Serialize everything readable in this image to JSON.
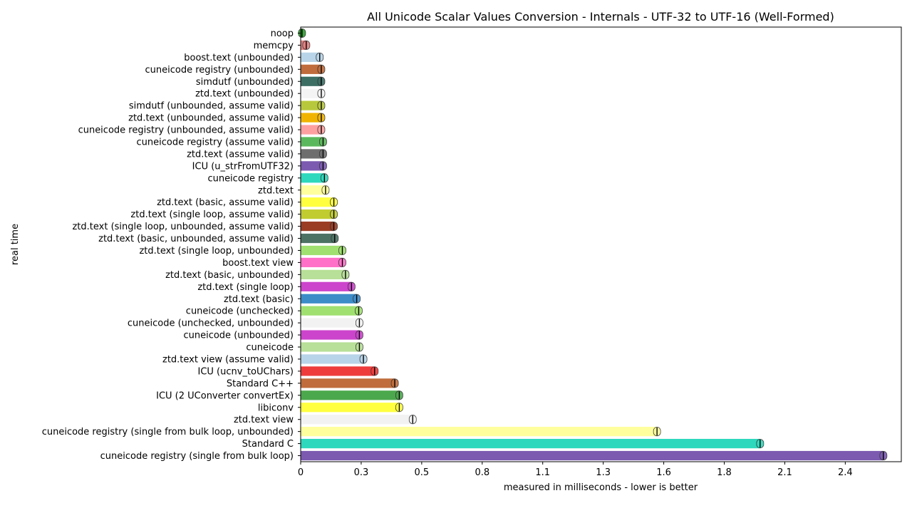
{
  "chart_data": {
    "type": "bar",
    "orientation": "horizontal",
    "title": "All Unicode Scalar Values Conversion - Internals - UTF-32 to UTF-16 (Well-Formed)",
    "xlabel": "measured in milliseconds - lower is better",
    "ylabel": "real time",
    "xlim": [
      0,
      2.68
    ],
    "xticks": [
      0,
      0.27,
      0.54,
      0.81,
      1.08,
      1.35,
      1.62,
      1.89,
      2.16,
      2.43
    ],
    "xtick_labels": [
      "0",
      "0.3",
      "0.5",
      "0.8",
      "1.1",
      "1.3",
      "1.6",
      "1.8",
      "2.1",
      "2.4"
    ],
    "grid": false,
    "legend": "none",
    "categories": [
      "noop",
      "memcpy",
      "boost.text (unbounded)",
      "cuneicode registry (unbounded)",
      "simdutf (unbounded)",
      "ztd.text (unbounded)",
      "simdutf (unbounded, assume valid)",
      "ztd.text (unbounded, assume valid)",
      "cuneicode registry (unbounded, assume valid)",
      "cuneicode registry (assume valid)",
      "ztd.text (assume valid)",
      "ICU (u_strFromUTF32)",
      "cuneicode registry",
      "ztd.text",
      "ztd.text (basic, assume valid)",
      "ztd.text (single loop, assume valid)",
      "ztd.text (single loop, unbounded, assume valid)",
      "ztd.text (basic, unbounded, assume valid)",
      "ztd.text (single loop, unbounded)",
      "boost.text view",
      "ztd.text (basic, unbounded)",
      "ztd.text (single loop)",
      "ztd.text (basic)",
      "cuneicode (unchecked)",
      "cuneicode (unchecked, unbounded)",
      "cuneicode (unbounded)",
      "cuneicode",
      "ztd.text view (assume valid)",
      "ICU (ucnv_toUChars)",
      "Standard C++",
      "ICU (2 UConverter convertEx)",
      "libiconv",
      "ztd.text view",
      "cuneicode registry (single from bulk loop, unbounded)",
      "Standard C",
      "cuneicode registry (single from bulk loop)"
    ],
    "values": [
      0.006,
      0.025,
      0.085,
      0.092,
      0.092,
      0.092,
      0.092,
      0.092,
      0.092,
      0.1,
      0.1,
      0.1,
      0.106,
      0.111,
      0.148,
      0.148,
      0.148,
      0.152,
      0.186,
      0.186,
      0.2,
      0.227,
      0.25,
      0.259,
      0.262,
      0.262,
      0.262,
      0.28,
      0.33,
      0.42,
      0.44,
      0.44,
      0.5,
      1.59,
      2.05,
      2.6
    ],
    "colors": [
      "#2ca02c",
      "#e08080",
      "#b8d4e8",
      "#c06c3c",
      "#3c6e64",
      "#f4f4f4",
      "#b8c83c",
      "#f0b400",
      "#ffa0a0",
      "#5cb85c",
      "#6e6e6e",
      "#7b5ab0",
      "#2ed8bc",
      "#ffff9e",
      "#ffff40",
      "#c0cc30",
      "#9a3c24",
      "#4c7264",
      "#a0e070",
      "#ff70c8",
      "#b8e098",
      "#cc44cc",
      "#3c8cc8",
      "#a0e070",
      "#f2f2f2",
      "#cc44cc",
      "#b8e098",
      "#b8d4e8",
      "#ee3c3c",
      "#c06c3c",
      "#4ca84c",
      "#ffff40",
      "#f2f2f2",
      "#ffff9e",
      "#2ed8bc",
      "#7b5ab0"
    ]
  }
}
